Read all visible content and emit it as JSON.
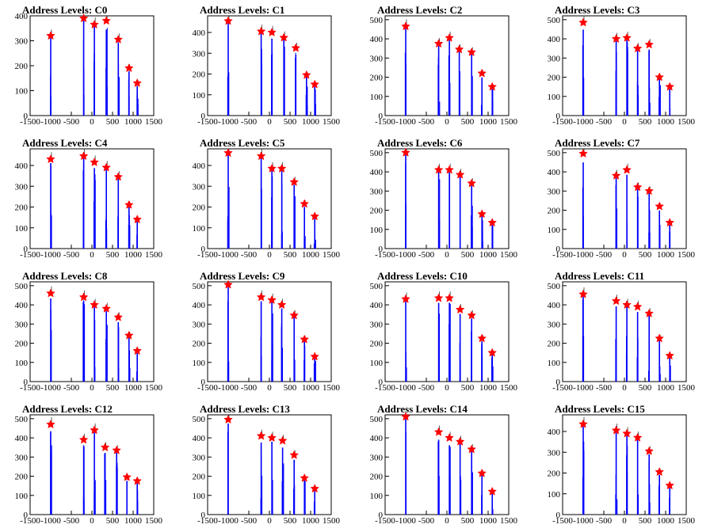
{
  "colors": {
    "bars": "#0000ff",
    "markers": "#ff0000",
    "frame": "#000000",
    "background": "#ffffff"
  },
  "chart_data": [
    {
      "type": "bar",
      "title": "Address Levels: C0",
      "xlim": [
        -1500,
        1500
      ],
      "ylim": [
        0,
        400
      ],
      "yticks": [
        0,
        100,
        200,
        300,
        400
      ],
      "xticks": [
        -1500,
        -1000,
        -500,
        0,
        500,
        1000,
        1500
      ],
      "peaks": [
        {
          "x": -1000,
          "y": 320
        },
        {
          "x": -200,
          "y": 390
        },
        {
          "x": 60,
          "y": 365
        },
        {
          "x": 350,
          "y": 380
        },
        {
          "x": 640,
          "y": 305
        },
        {
          "x": 900,
          "y": 190
        },
        {
          "x": 1100,
          "y": 130
        }
      ]
    },
    {
      "type": "bar",
      "title": "Address Levels: C1",
      "xlim": [
        -1500,
        1500
      ],
      "ylim": [
        0,
        480
      ],
      "yticks": [
        0,
        100,
        200,
        300,
        400
      ],
      "xticks": [
        -1500,
        -1000,
        -500,
        0,
        500,
        1000,
        1500
      ],
      "peaks": [
        {
          "x": -1000,
          "y": 455
        },
        {
          "x": -200,
          "y": 405
        },
        {
          "x": 60,
          "y": 400
        },
        {
          "x": 350,
          "y": 375
        },
        {
          "x": 640,
          "y": 325
        },
        {
          "x": 900,
          "y": 195
        },
        {
          "x": 1100,
          "y": 150
        }
      ]
    },
    {
      "type": "bar",
      "title": "Address Levels: C2",
      "xlim": [
        -1500,
        1500
      ],
      "ylim": [
        0,
        520
      ],
      "yticks": [
        0,
        100,
        200,
        300,
        400,
        500
      ],
      "xticks": [
        -1500,
        -1000,
        -500,
        0,
        500,
        1000,
        1500
      ],
      "peaks": [
        {
          "x": -1000,
          "y": 465
        },
        {
          "x": -200,
          "y": 375
        },
        {
          "x": 60,
          "y": 405
        },
        {
          "x": 300,
          "y": 345
        },
        {
          "x": 600,
          "y": 330
        },
        {
          "x": 850,
          "y": 220
        },
        {
          "x": 1100,
          "y": 150
        }
      ]
    },
    {
      "type": "bar",
      "title": "Address Levels: C3",
      "xlim": [
        -1500,
        1500
      ],
      "ylim": [
        0,
        520
      ],
      "yticks": [
        0,
        100,
        200,
        300,
        400,
        500
      ],
      "xticks": [
        -1500,
        -1000,
        -500,
        0,
        500,
        1000,
        1500
      ],
      "peaks": [
        {
          "x": -1000,
          "y": 485
        },
        {
          "x": -200,
          "y": 400
        },
        {
          "x": 60,
          "y": 405
        },
        {
          "x": 320,
          "y": 350
        },
        {
          "x": 600,
          "y": 370
        },
        {
          "x": 850,
          "y": 200
        },
        {
          "x": 1100,
          "y": 150
        }
      ]
    },
    {
      "type": "bar",
      "title": "Address Levels: C4",
      "xlim": [
        -1500,
        1500
      ],
      "ylim": [
        0,
        480
      ],
      "yticks": [
        0,
        100,
        200,
        300,
        400
      ],
      "xticks": [
        -1500,
        -1000,
        -500,
        0,
        500,
        1000,
        1500
      ],
      "peaks": [
        {
          "x": -1000,
          "y": 430
        },
        {
          "x": -200,
          "y": 445
        },
        {
          "x": 60,
          "y": 415
        },
        {
          "x": 350,
          "y": 390
        },
        {
          "x": 640,
          "y": 345
        },
        {
          "x": 900,
          "y": 210
        },
        {
          "x": 1100,
          "y": 140
        }
      ]
    },
    {
      "type": "bar",
      "title": "Address Levels: C5",
      "xlim": [
        -1500,
        1500
      ],
      "ylim": [
        0,
        480
      ],
      "yticks": [
        0,
        100,
        200,
        300,
        400
      ],
      "xticks": [
        -1500,
        -1000,
        -500,
        0,
        500,
        1000,
        1500
      ],
      "peaks": [
        {
          "x": -1000,
          "y": 460
        },
        {
          "x": -200,
          "y": 445
        },
        {
          "x": 60,
          "y": 385
        },
        {
          "x": 300,
          "y": 385
        },
        {
          "x": 600,
          "y": 320
        },
        {
          "x": 850,
          "y": 215
        },
        {
          "x": 1100,
          "y": 155
        }
      ]
    },
    {
      "type": "bar",
      "title": "Address Levels: C6",
      "xlim": [
        -1500,
        1500
      ],
      "ylim": [
        0,
        520
      ],
      "yticks": [
        0,
        100,
        200,
        300,
        400,
        500
      ],
      "xticks": [
        -1500,
        -1000,
        -500,
        0,
        500,
        1000,
        1500
      ],
      "peaks": [
        {
          "x": -1000,
          "y": 500
        },
        {
          "x": -200,
          "y": 410
        },
        {
          "x": 60,
          "y": 410
        },
        {
          "x": 320,
          "y": 385
        },
        {
          "x": 600,
          "y": 340
        },
        {
          "x": 850,
          "y": 180
        },
        {
          "x": 1100,
          "y": 135
        }
      ]
    },
    {
      "type": "bar",
      "title": "Address Levels: C7",
      "xlim": [
        -1500,
        1500
      ],
      "ylim": [
        0,
        520
      ],
      "yticks": [
        0,
        100,
        200,
        300,
        400,
        500
      ],
      "xticks": [
        -1500,
        -1000,
        -500,
        0,
        500,
        1000,
        1500
      ],
      "peaks": [
        {
          "x": -1000,
          "y": 495
        },
        {
          "x": -200,
          "y": 380
        },
        {
          "x": 60,
          "y": 410
        },
        {
          "x": 320,
          "y": 320
        },
        {
          "x": 600,
          "y": 300
        },
        {
          "x": 850,
          "y": 220
        },
        {
          "x": 1100,
          "y": 135
        }
      ]
    },
    {
      "type": "bar",
      "title": "Address Levels: C8",
      "xlim": [
        -1500,
        1500
      ],
      "ylim": [
        0,
        520
      ],
      "yticks": [
        0,
        100,
        200,
        300,
        400,
        500
      ],
      "xticks": [
        -1500,
        -1000,
        -500,
        0,
        500,
        1000,
        1500
      ],
      "peaks": [
        {
          "x": -1000,
          "y": 460
        },
        {
          "x": -200,
          "y": 440
        },
        {
          "x": 60,
          "y": 400
        },
        {
          "x": 350,
          "y": 380
        },
        {
          "x": 640,
          "y": 335
        },
        {
          "x": 900,
          "y": 240
        },
        {
          "x": 1100,
          "y": 160
        }
      ]
    },
    {
      "type": "bar",
      "title": "Address Levels: C9",
      "xlim": [
        -1500,
        1500
      ],
      "ylim": [
        0,
        520
      ],
      "yticks": [
        0,
        100,
        200,
        300,
        400,
        500
      ],
      "xticks": [
        -1500,
        -1000,
        -500,
        0,
        500,
        1000,
        1500
      ],
      "peaks": [
        {
          "x": -1000,
          "y": 505
        },
        {
          "x": -200,
          "y": 440
        },
        {
          "x": 60,
          "y": 425
        },
        {
          "x": 300,
          "y": 400
        },
        {
          "x": 600,
          "y": 345
        },
        {
          "x": 850,
          "y": 220
        },
        {
          "x": 1100,
          "y": 130
        }
      ]
    },
    {
      "type": "bar",
      "title": "Address Levels: C10",
      "xlim": [
        -1500,
        1500
      ],
      "ylim": [
        0,
        520
      ],
      "yticks": [
        0,
        100,
        200,
        300,
        400,
        500
      ],
      "xticks": [
        -1500,
        -1000,
        -500,
        0,
        500,
        1000,
        1500
      ],
      "peaks": [
        {
          "x": -1000,
          "y": 430
        },
        {
          "x": -200,
          "y": 435
        },
        {
          "x": 60,
          "y": 435
        },
        {
          "x": 320,
          "y": 375
        },
        {
          "x": 600,
          "y": 345
        },
        {
          "x": 850,
          "y": 225
        },
        {
          "x": 1100,
          "y": 150
        }
      ]
    },
    {
      "type": "bar",
      "title": "Address Levels: C11",
      "xlim": [
        -1500,
        1500
      ],
      "ylim": [
        0,
        520
      ],
      "yticks": [
        0,
        100,
        200,
        300,
        400,
        500
      ],
      "xticks": [
        -1500,
        -1000,
        -500,
        0,
        500,
        1000,
        1500
      ],
      "peaks": [
        {
          "x": -1000,
          "y": 455
        },
        {
          "x": -200,
          "y": 420
        },
        {
          "x": 60,
          "y": 400
        },
        {
          "x": 320,
          "y": 390
        },
        {
          "x": 600,
          "y": 355
        },
        {
          "x": 850,
          "y": 225
        },
        {
          "x": 1100,
          "y": 135
        }
      ]
    },
    {
      "type": "bar",
      "title": "Address Levels: C12",
      "xlim": [
        -1500,
        1500
      ],
      "ylim": [
        0,
        520
      ],
      "yticks": [
        0,
        100,
        200,
        300,
        400,
        500
      ],
      "xticks": [
        -1500,
        -1000,
        -500,
        0,
        500,
        1000,
        1500
      ],
      "peaks": [
        {
          "x": -1000,
          "y": 470
        },
        {
          "x": -200,
          "y": 390
        },
        {
          "x": 60,
          "y": 440
        },
        {
          "x": 320,
          "y": 350
        },
        {
          "x": 600,
          "y": 335
        },
        {
          "x": 850,
          "y": 195
        },
        {
          "x": 1100,
          "y": 175
        }
      ]
    },
    {
      "type": "bar",
      "title": "Address Levels: C13",
      "xlim": [
        -1500,
        1500
      ],
      "ylim": [
        0,
        520
      ],
      "yticks": [
        0,
        100,
        200,
        300,
        400,
        500
      ],
      "xticks": [
        -1500,
        -1000,
        -500,
        0,
        500,
        1000,
        1500
      ],
      "peaks": [
        {
          "x": -1000,
          "y": 495
        },
        {
          "x": -200,
          "y": 410
        },
        {
          "x": 60,
          "y": 400
        },
        {
          "x": 320,
          "y": 385
        },
        {
          "x": 600,
          "y": 310
        },
        {
          "x": 850,
          "y": 190
        },
        {
          "x": 1100,
          "y": 135
        }
      ]
    },
    {
      "type": "bar",
      "title": "Address Levels: C14",
      "xlim": [
        -1500,
        1500
      ],
      "ylim": [
        0,
        520
      ],
      "yticks": [
        0,
        100,
        200,
        300,
        400,
        500
      ],
      "xticks": [
        -1500,
        -1000,
        -500,
        0,
        500,
        1000,
        1500
      ],
      "peaks": [
        {
          "x": -1000,
          "y": 510
        },
        {
          "x": -200,
          "y": 430
        },
        {
          "x": 60,
          "y": 400
        },
        {
          "x": 320,
          "y": 380
        },
        {
          "x": 600,
          "y": 340
        },
        {
          "x": 850,
          "y": 215
        },
        {
          "x": 1100,
          "y": 120
        }
      ]
    },
    {
      "type": "bar",
      "title": "Address Levels: C15",
      "xlim": [
        -1500,
        1500
      ],
      "ylim": [
        0,
        480
      ],
      "yticks": [
        0,
        100,
        200,
        300,
        400
      ],
      "xticks": [
        -1500,
        -1000,
        -500,
        0,
        500,
        1000,
        1500
      ],
      "peaks": [
        {
          "x": -1000,
          "y": 435
        },
        {
          "x": -200,
          "y": 405
        },
        {
          "x": 60,
          "y": 390
        },
        {
          "x": 320,
          "y": 370
        },
        {
          "x": 600,
          "y": 305
        },
        {
          "x": 850,
          "y": 205
        },
        {
          "x": 1100,
          "y": 140
        }
      ]
    }
  ]
}
